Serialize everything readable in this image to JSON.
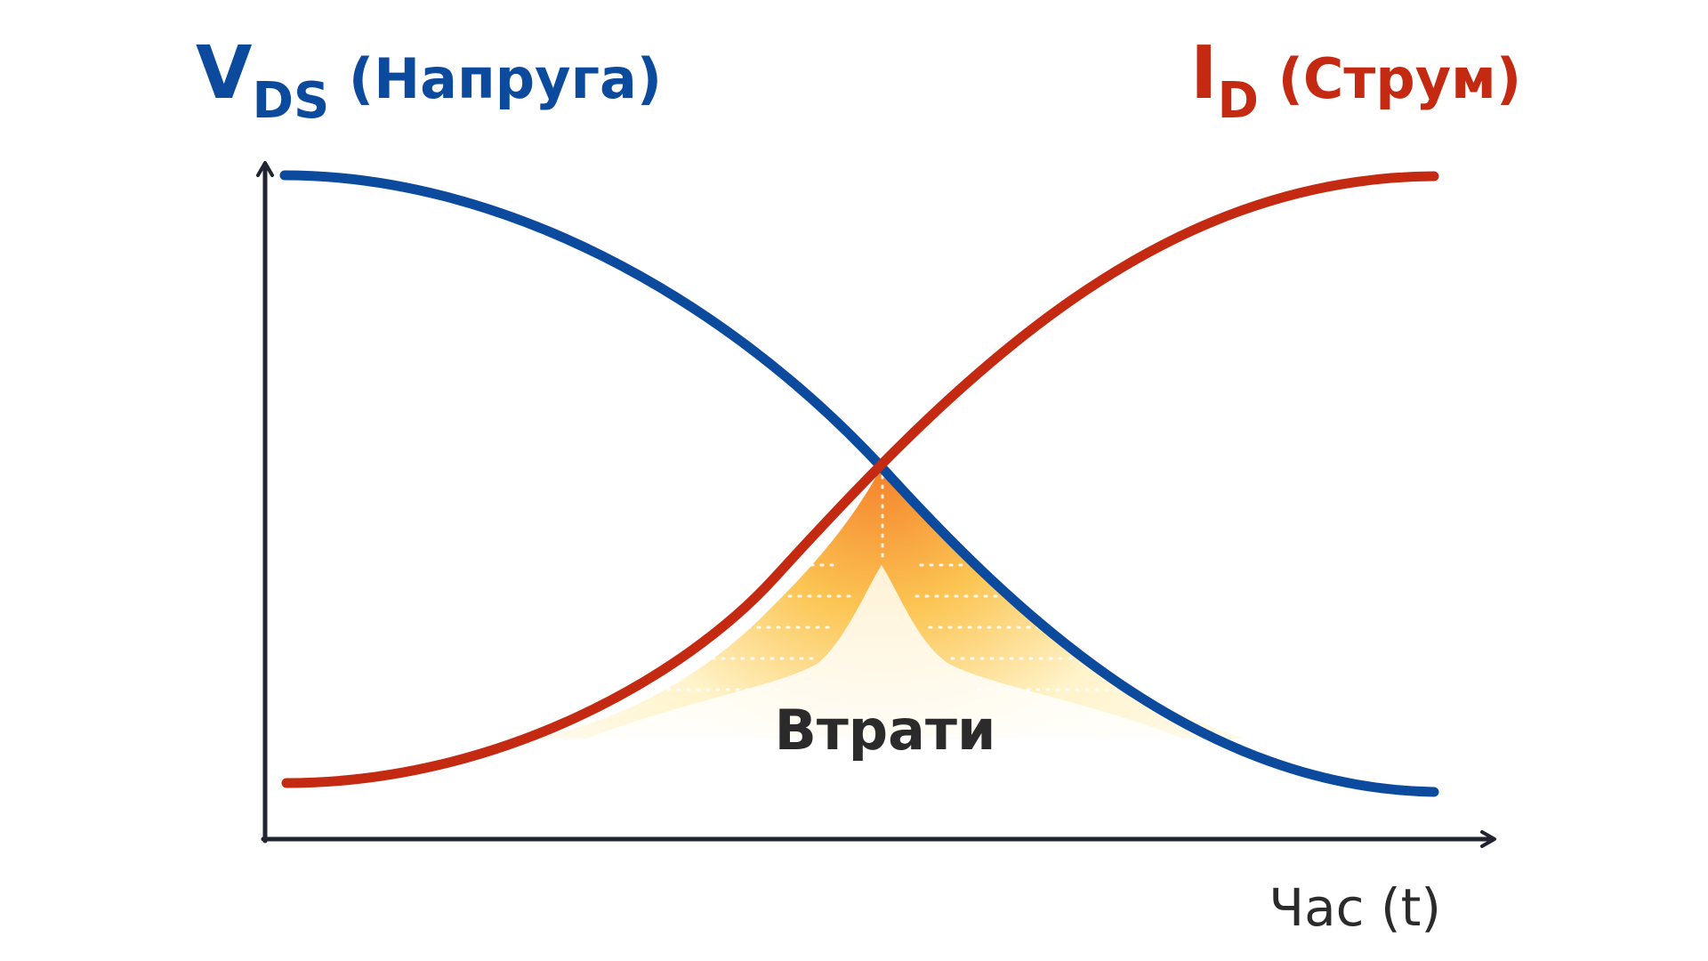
{
  "colors": {
    "voltage": "#0b4a9c",
    "current": "#c42a12",
    "axis": "#1f2430",
    "loss_peak": "#f47b20",
    "loss_mid": "#fbc24a",
    "loss_base": "#fff9e6",
    "loss_text": "#2b2b2b"
  },
  "labels": {
    "voltage_main": "V",
    "voltage_sub": "DS",
    "voltage_desc": " (Напруга)",
    "current_main": "I",
    "current_sub": "D",
    "current_desc": " (Струм)",
    "losses": "Втрати",
    "time_axis": "Час (t)"
  },
  "curves": {
    "voltage_trend": "falling",
    "current_trend": "rising"
  }
}
